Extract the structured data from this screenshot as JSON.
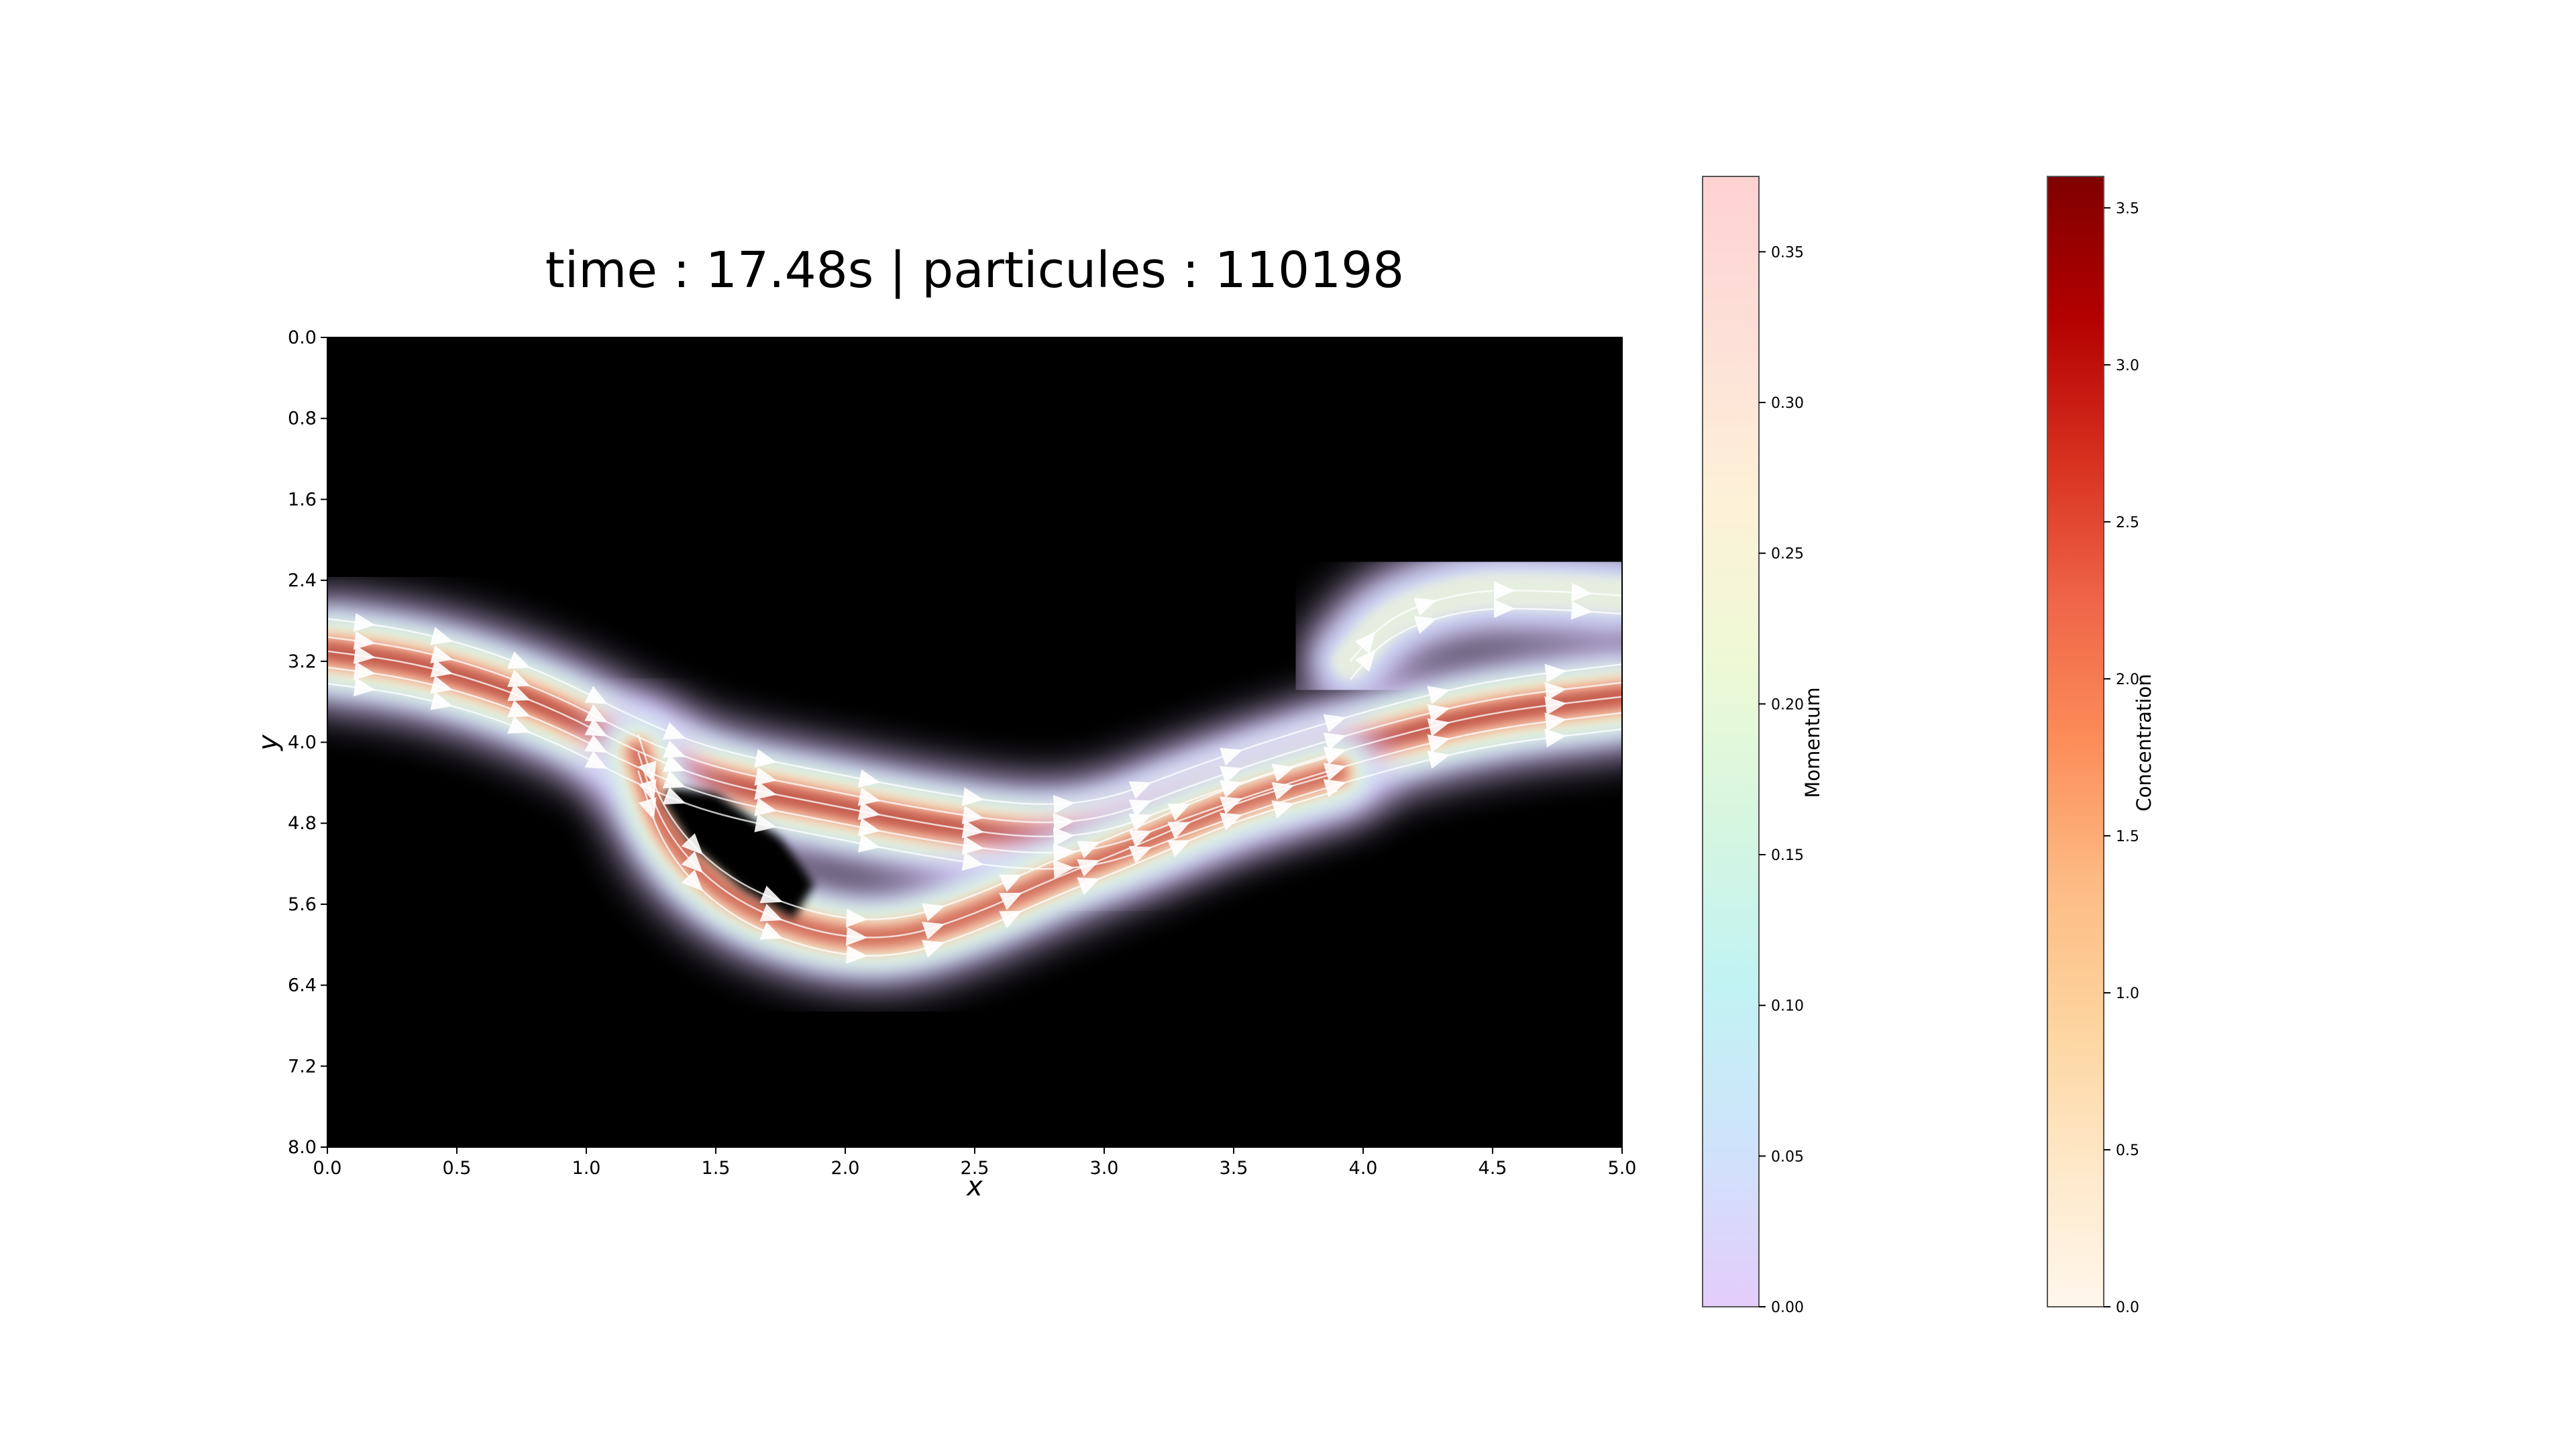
{
  "chart_data": {
    "type": "heatmap",
    "title": "time : 17.48s | particules : 110198",
    "xlabel": "x",
    "ylabel": "y",
    "xlim": [
      0.0,
      5.0
    ],
    "ylim": [
      0.0,
      8.0
    ],
    "y_inverted": true,
    "x_ticks": [
      "0.0",
      "0.5",
      "1.0",
      "1.5",
      "2.0",
      "2.5",
      "3.0",
      "3.5",
      "4.0",
      "4.5",
      "5.0"
    ],
    "y_ticks": [
      "0.0",
      "0.8",
      "1.6",
      "2.4",
      "3.2",
      "4.0",
      "4.8",
      "5.6",
      "6.4",
      "7.2",
      "8.0"
    ],
    "background_color": "#000000",
    "main_flow_path": [
      [
        0.0,
        3.1
      ],
      [
        0.3,
        3.2
      ],
      [
        0.6,
        3.4
      ],
      [
        0.9,
        3.7
      ],
      [
        1.2,
        4.1
      ],
      [
        1.5,
        4.4
      ],
      [
        1.9,
        4.6
      ],
      [
        2.3,
        4.8
      ],
      [
        2.7,
        4.95
      ],
      [
        3.0,
        4.9
      ],
      [
        3.3,
        4.6
      ],
      [
        3.7,
        4.25
      ],
      [
        4.1,
        3.95
      ],
      [
        4.5,
        3.7
      ],
      [
        5.0,
        3.55
      ]
    ],
    "lower_branch_path": [
      [
        1.2,
        4.1
      ],
      [
        1.3,
        4.9
      ],
      [
        1.55,
        5.55
      ],
      [
        1.9,
        5.9
      ],
      [
        2.2,
        5.95
      ],
      [
        2.5,
        5.7
      ],
      [
        2.8,
        5.35
      ],
      [
        3.1,
        5.05
      ],
      [
        3.5,
        4.6
      ],
      [
        3.9,
        4.3
      ]
    ],
    "upper_right_lobe_path": [
      [
        3.95,
        3.2
      ],
      [
        4.1,
        2.75
      ],
      [
        4.4,
        2.5
      ],
      [
        4.7,
        2.5
      ],
      [
        5.0,
        2.55
      ]
    ],
    "hole_outline": [
      [
        1.32,
        4.45
      ],
      [
        1.5,
        4.5
      ],
      [
        1.75,
        4.95
      ],
      [
        1.88,
        5.4
      ],
      [
        1.8,
        5.75
      ],
      [
        1.6,
        5.45
      ],
      [
        1.4,
        5.0
      ],
      [
        1.3,
        4.6
      ]
    ],
    "colorbars": [
      {
        "label": "Momentum",
        "range": [
          0.0,
          0.375
        ],
        "ticks": [
          "0.00",
          "0.05",
          "0.10",
          "0.15",
          "0.20",
          "0.25",
          "0.30",
          "0.35"
        ],
        "colors": [
          "#e4ccfb",
          "#cfe3fb",
          "#c1f3f3",
          "#d6f6e0",
          "#eef9d6",
          "#fdf1d8",
          "#fde0d8",
          "#ffd2d2"
        ]
      },
      {
        "label": "Concentration",
        "range": [
          0.0,
          3.6
        ],
        "ticks": [
          "0.0",
          "0.5",
          "1.0",
          "1.5",
          "2.0",
          "2.5",
          "3.0",
          "3.5"
        ],
        "colors": [
          "#fff7ec",
          "#fee8c8",
          "#fdd49e",
          "#fdbb84",
          "#fc8d59",
          "#ef6548",
          "#d7301f",
          "#b30000",
          "#7f0000"
        ]
      }
    ]
  }
}
